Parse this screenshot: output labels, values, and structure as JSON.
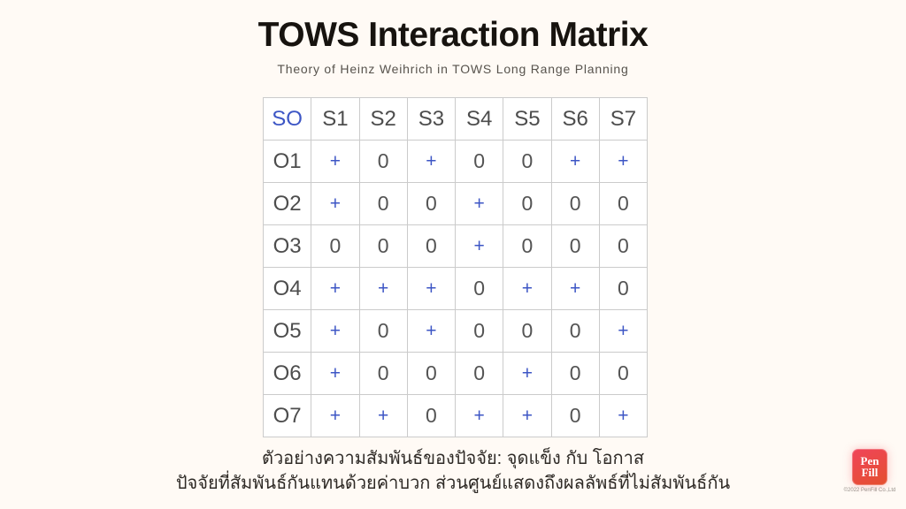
{
  "slide": {
    "title": "TOWS Interaction Matrix",
    "subtitle": "Theory of Heinz Weihrich in TOWS Long Range Planning"
  },
  "matrix": {
    "header": [
      "SO",
      "S1",
      "S2",
      "S3",
      "S4",
      "S5",
      "S6",
      "S7"
    ],
    "rows": [
      {
        "label": "O1",
        "cells": [
          "+",
          "0",
          "+",
          "0",
          "0",
          "+",
          "+"
        ]
      },
      {
        "label": "O2",
        "cells": [
          "+",
          "0",
          "0",
          "+",
          "0",
          "0",
          "0"
        ]
      },
      {
        "label": "O3",
        "cells": [
          "0",
          "0",
          "0",
          "+",
          "0",
          "0",
          "0"
        ]
      },
      {
        "label": "O4",
        "cells": [
          "+",
          "+",
          "+",
          "0",
          "+",
          "+",
          "0"
        ]
      },
      {
        "label": "O5",
        "cells": [
          "+",
          "0",
          "+",
          "0",
          "0",
          "0",
          "+"
        ]
      },
      {
        "label": "O6",
        "cells": [
          "+",
          "0",
          "0",
          "0",
          "+",
          "0",
          "0"
        ]
      },
      {
        "label": "O7",
        "cells": [
          "+",
          "+",
          "0",
          "+",
          "+",
          "0",
          "+"
        ]
      }
    ]
  },
  "caption": {
    "line1": "ตัวอย่างความสัมพันธ์ของปัจจัย: จุดแข็ง กับ โอกาส",
    "line2": "ปัจจัยที่สัมพันธ์กันแทนด้วยค่าบวก ส่วนศูนย์แสดงถึงผลลัพธ์ที่ไม่สัมพันธ์กัน"
  },
  "logo": {
    "word_top": "Pen",
    "word_bottom": "Fill",
    "copyright": "©2022 PenFill Co.,Ltd"
  },
  "colors": {
    "background": "#FFFAF5",
    "accent_blue": "#3D56C5",
    "value_gray": "#545454",
    "table_border": "#CBCBCB",
    "logo_gradient_start": "#F0445A",
    "logo_gradient_end": "#E4502E"
  }
}
